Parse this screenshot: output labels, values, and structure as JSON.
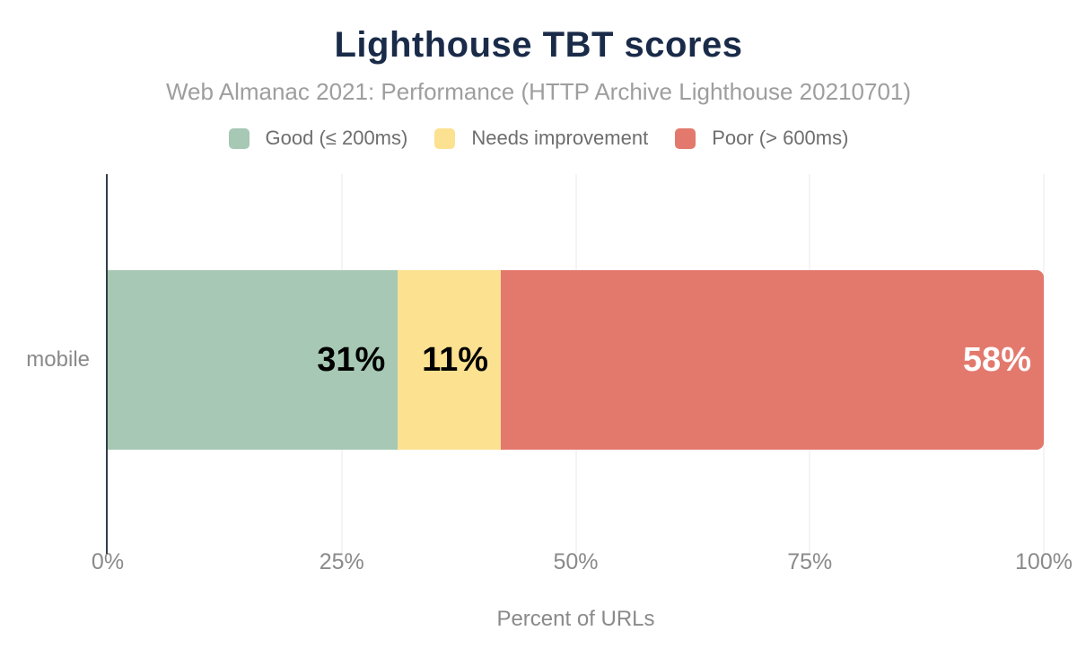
{
  "title": "Lighthouse TBT scores",
  "subtitle": "Web Almanac 2021: Performance (HTTP Archive Lighthouse 20210701)",
  "legend": {
    "items": [
      {
        "label": "Good (≤ 200ms)",
        "color": "#a6c8b4"
      },
      {
        "label": "Needs improvement",
        "color": "#fce191"
      },
      {
        "label": "Poor (> 600ms)",
        "color": "#e3796d"
      }
    ]
  },
  "chart_data": {
    "type": "bar",
    "orientation": "horizontal",
    "stacked": true,
    "title": "Lighthouse TBT scores",
    "subtitle": "Web Almanac 2021: Performance (HTTP Archive Lighthouse 20210701)",
    "categories": [
      "mobile"
    ],
    "series": [
      {
        "name": "Good (≤ 200ms)",
        "values": [
          31
        ],
        "data_label": "31%",
        "color": "#a6c8b4",
        "label_color": "#000000"
      },
      {
        "name": "Needs improvement",
        "values": [
          11
        ],
        "data_label": "11%",
        "color": "#fce191",
        "label_color": "#000000"
      },
      {
        "name": "Poor (> 600ms)",
        "values": [
          58
        ],
        "data_label": "58%",
        "color": "#e3796d",
        "label_color": "#ffffff"
      }
    ],
    "xlabel": "Percent of URLs",
    "ylabel": "",
    "xlim": [
      0,
      100
    ],
    "x_ticks": [
      "0%",
      "25%",
      "50%",
      "75%",
      "100%"
    ],
    "x_tick_positions": [
      0,
      25,
      50,
      75,
      100
    ],
    "grid": true,
    "legend_position": "top"
  },
  "colors": {
    "title": "#1a2b49",
    "subtitle": "#9e9e9e",
    "legend_text": "#6e6e6e",
    "axis_text": "#8a8a8a",
    "axis_line": "#343c44",
    "gridline": "#e8e8e8",
    "background": "#ffffff"
  }
}
